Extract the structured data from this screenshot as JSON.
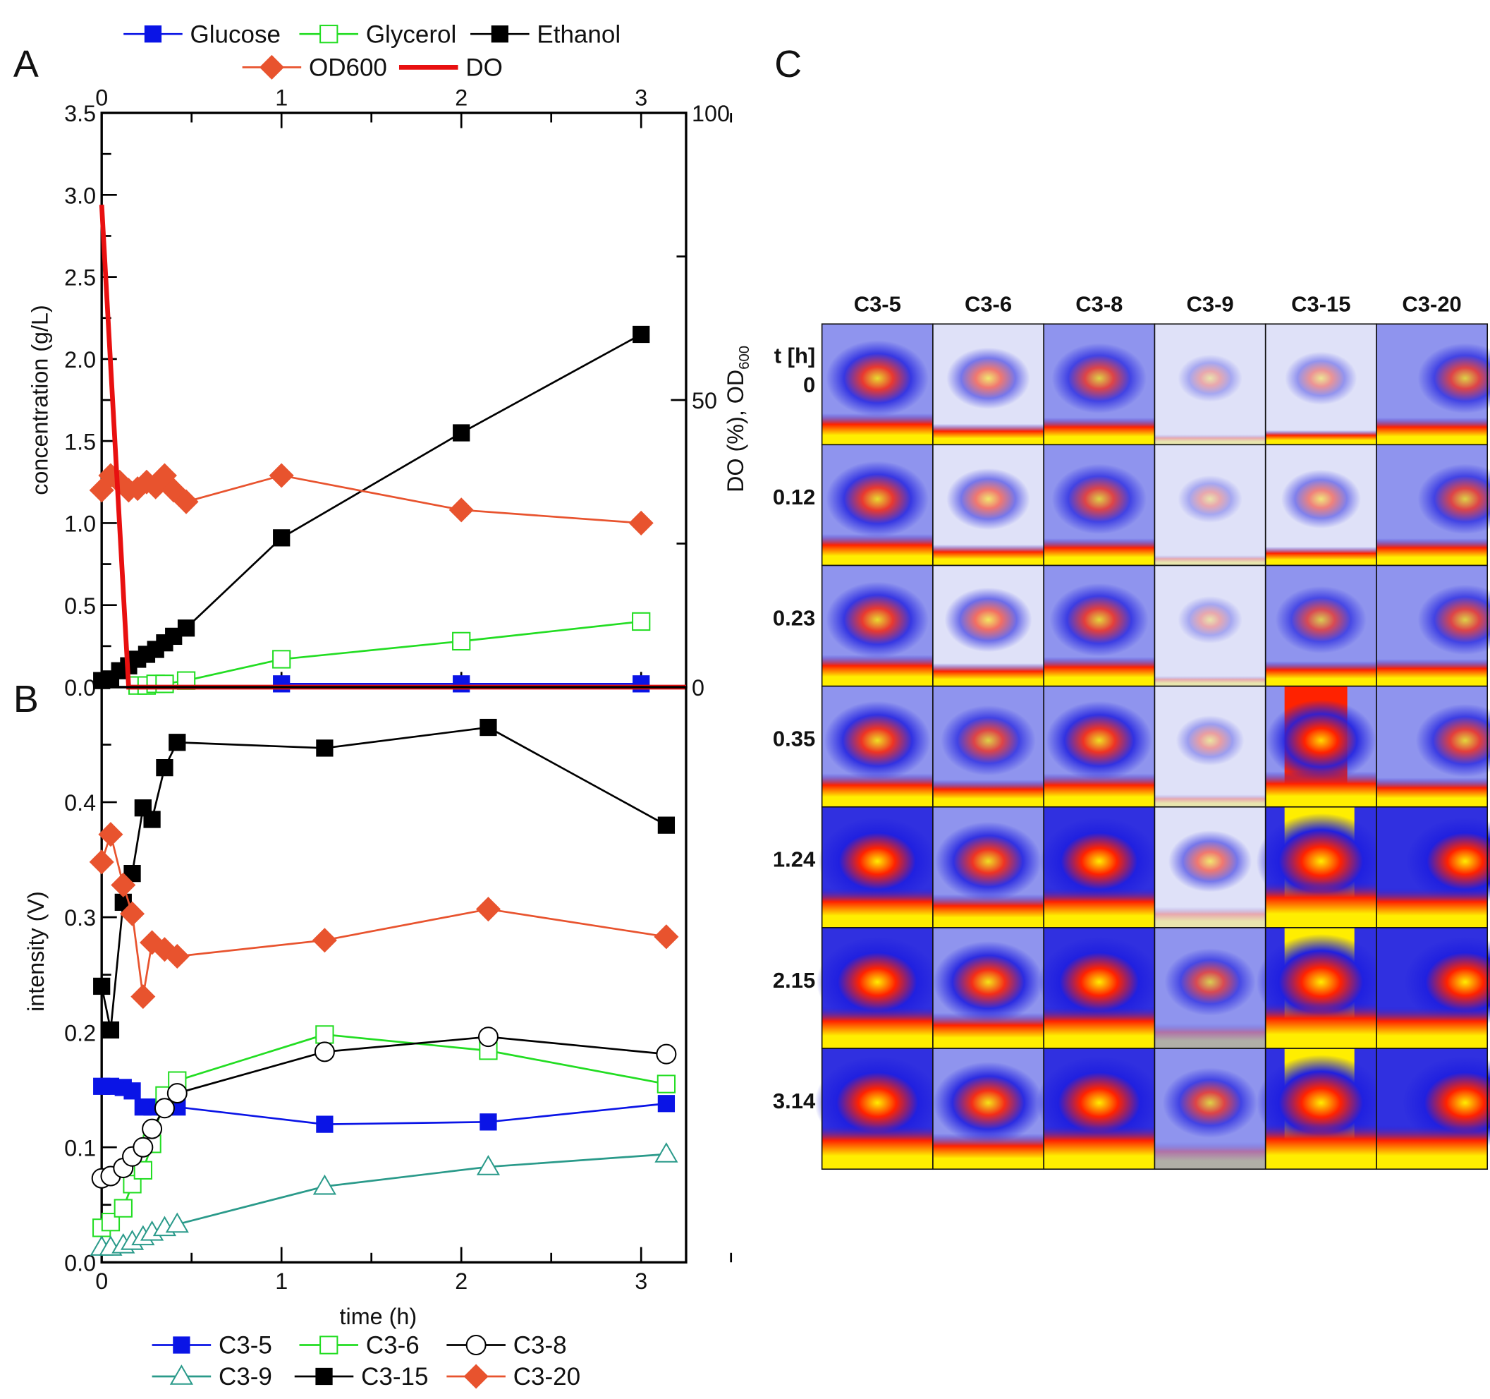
{
  "panel_labels": [
    "A",
    "B",
    "C"
  ],
  "chart_data": [
    {
      "type": "line",
      "panel": "A",
      "xlabel": "time (h)",
      "ylabel": "concentration (g/L)",
      "y2label": "DO (%), OD",
      "y2label_sub": "600",
      "xlim": [
        0,
        3.25
      ],
      "ylim": [
        0,
        3.5
      ],
      "y2lim": [
        0,
        100
      ],
      "xticks": [
        "0",
        "1",
        "2",
        "3"
      ],
      "yticks": [
        "0.0",
        "0.5",
        "1.0",
        "1.5",
        "2.0",
        "2.5",
        "3.0",
        "3.5"
      ],
      "y2ticks": [
        "0",
        "50",
        "100"
      ],
      "legend_position": "top",
      "series": [
        {
          "name": "Glucose",
          "color": "#0a14e6",
          "marker": "square-filled",
          "x": [
            1,
            2,
            3
          ],
          "y": [
            0.02,
            0.02,
            0.02
          ]
        },
        {
          "name": "Glycerol",
          "color": "#22dd22",
          "marker": "square-open",
          "x": [
            0.2,
            0.25,
            0.3,
            0.35,
            0.47,
            1,
            2,
            3
          ],
          "y": [
            0.01,
            0.01,
            0.02,
            0.02,
            0.04,
            0.17,
            0.28,
            0.4
          ]
        },
        {
          "name": "Ethanol",
          "color": "#000000",
          "marker": "square-filled",
          "x": [
            0,
            0.05,
            0.1,
            0.15,
            0.2,
            0.25,
            0.3,
            0.35,
            0.4,
            0.47,
            1,
            2,
            3
          ],
          "y": [
            0.04,
            0.05,
            0.1,
            0.13,
            0.17,
            0.2,
            0.23,
            0.27,
            0.31,
            0.36,
            0.91,
            1.55,
            2.15
          ]
        },
        {
          "name": "OD600",
          "color": "#e8532e",
          "marker": "diamond-filled",
          "x": [
            0,
            0.05,
            0.1,
            0.15,
            0.2,
            0.25,
            0.3,
            0.35,
            0.4,
            0.47,
            1,
            2,
            3
          ],
          "y": [
            1.2,
            1.29,
            1.25,
            1.2,
            1.21,
            1.25,
            1.22,
            1.29,
            1.2,
            1.13,
            1.29,
            1.08,
            1.0
          ]
        },
        {
          "name": "DO",
          "color": "#e81010",
          "marker": "none",
          "axis": "right",
          "x": [
            0,
            0.15,
            3.25
          ],
          "y": [
            84,
            0,
            0
          ]
        }
      ]
    },
    {
      "type": "line",
      "panel": "B",
      "xlabel": "time (h)",
      "ylabel": "intensity (V)",
      "xlim": [
        0,
        3.25
      ],
      "ylim": [
        0,
        0.5
      ],
      "xticks": [
        "0",
        "1",
        "2",
        "3"
      ],
      "yticks": [
        "0.0",
        "0.1",
        "0.2",
        "0.3",
        "0.4"
      ],
      "legend_position": "bottom",
      "x": [
        0,
        0.05,
        0.12,
        0.17,
        0.23,
        0.28,
        0.35,
        0.42,
        1.24,
        2.15,
        3.14
      ],
      "series": [
        {
          "name": "C3-5",
          "color": "#0a14e6",
          "marker": "square-filled",
          "values": [
            0.153,
            0.153,
            0.152,
            0.149,
            0.135,
            0.135,
            0.135,
            0.135,
            0.12,
            0.122,
            0.138
          ]
        },
        {
          "name": "C3-6",
          "color": "#22dd22",
          "marker": "square-open",
          "values": [
            0.03,
            0.035,
            0.047,
            0.068,
            0.08,
            0.103,
            0.145,
            0.158,
            0.198,
            0.184,
            0.155
          ]
        },
        {
          "name": "C3-8",
          "color": "#000000",
          "marker": "circle-open",
          "values": [
            0.073,
            0.075,
            0.082,
            0.092,
            0.1,
            0.116,
            0.134,
            0.147,
            0.183,
            0.196,
            0.181
          ]
        },
        {
          "name": "C3-9",
          "color": "#2a9a8a",
          "marker": "triangle-open",
          "values": [
            0.013,
            0.013,
            0.015,
            0.018,
            0.022,
            0.026,
            0.03,
            0.033,
            0.066,
            0.083,
            0.094
          ]
        },
        {
          "name": "C3-15",
          "color": "#000000",
          "marker": "square-filled",
          "values": [
            0.24,
            0.202,
            0.313,
            0.338,
            0.395,
            0.385,
            0.43,
            0.452,
            0.447,
            0.465,
            0.38
          ]
        },
        {
          "name": "C3-20",
          "color": "#e8532e",
          "marker": "diamond-filled",
          "values": [
            0.348,
            0.372,
            0.328,
            0.303,
            0.231,
            0.278,
            0.272,
            0.266,
            0.28,
            0.307,
            0.283
          ]
        }
      ]
    },
    {
      "type": "heatmap",
      "panel": "C",
      "row_header": "t [h]",
      "columns": [
        "C3-5",
        "C3-6",
        "C3-8",
        "C3-9",
        "C3-15",
        "C3-20"
      ],
      "rows": [
        "0",
        "0.12",
        "0.23",
        "0.35",
        "1.24",
        "2.15",
        "3.14"
      ],
      "intensity": [
        [
          0.6,
          0.35,
          0.5,
          0.1,
          0.2,
          0.5
        ],
        [
          0.6,
          0.35,
          0.5,
          0.1,
          0.3,
          0.5
        ],
        [
          0.6,
          0.4,
          0.55,
          0.1,
          0.45,
          0.5
        ],
        [
          0.65,
          0.5,
          0.65,
          0.15,
          0.7,
          0.55
        ],
        [
          0.8,
          0.65,
          0.8,
          0.35,
          0.95,
          0.8
        ],
        [
          0.85,
          0.7,
          0.85,
          0.45,
          0.95,
          0.85
        ],
        [
          0.9,
          0.7,
          0.9,
          0.5,
          0.95,
          0.9
        ]
      ]
    }
  ]
}
